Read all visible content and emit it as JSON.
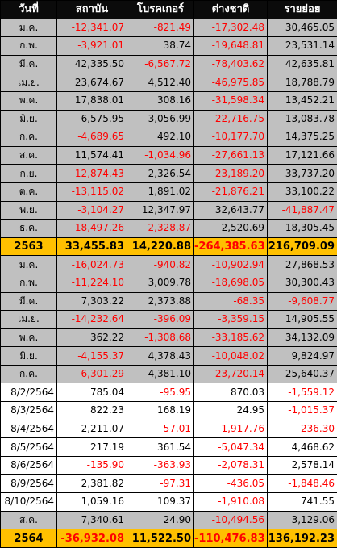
{
  "headers": [
    "วันที่",
    "สถาบัน",
    "โบรคเกอร์",
    "ต่างชาติ",
    "รายย่อย"
  ],
  "rows": [
    {
      "type": "month",
      "label": "ม.ค.",
      "values": [
        "-12,341.07",
        "-821.49",
        "-17,302.48",
        "30,465.05"
      ]
    },
    {
      "type": "month",
      "label": "ก.พ.",
      "values": [
        "-3,921.01",
        "38.74",
        "-19,648.81",
        "23,531.14"
      ]
    },
    {
      "type": "month",
      "label": "มี.ค.",
      "values": [
        "42,335.50",
        "-6,567.72",
        "-78,403.62",
        "42,635.81"
      ]
    },
    {
      "type": "month",
      "label": "เม.ย.",
      "values": [
        "23,674.67",
        "4,512.40",
        "-46,975.85",
        "18,788.79"
      ]
    },
    {
      "type": "month",
      "label": "พ.ค.",
      "values": [
        "17,838.01",
        "308.16",
        "-31,598.34",
        "13,452.21"
      ]
    },
    {
      "type": "month",
      "label": "มิ.ย.",
      "values": [
        "6,575.95",
        "3,056.99",
        "-22,716.75",
        "13,083.78"
      ]
    },
    {
      "type": "month",
      "label": "ก.ค.",
      "values": [
        "-4,689.65",
        "492.10",
        "-10,177.70",
        "14,375.25"
      ]
    },
    {
      "type": "month",
      "label": "ส.ค.",
      "values": [
        "11,574.41",
        "-1,034.96",
        "-27,661.13",
        "17,121.66"
      ]
    },
    {
      "type": "month",
      "label": "ก.ย.",
      "values": [
        "-12,874.43",
        "2,326.54",
        "-23,189.20",
        "33,737.20"
      ]
    },
    {
      "type": "month",
      "label": "ต.ค.",
      "values": [
        "-13,115.02",
        "1,891.02",
        "-21,876.21",
        "33,100.22"
      ]
    },
    {
      "type": "month",
      "label": "พ.ย.",
      "values": [
        "-3,104.27",
        "12,347.97",
        "32,643.77",
        "-41,887.47"
      ]
    },
    {
      "type": "month",
      "label": "ธ.ค.",
      "values": [
        "-18,497.26",
        "-2,328.87",
        "2,520.69",
        "18,305.45"
      ]
    },
    {
      "type": "summary",
      "label": "2563",
      "values": [
        "33,455.83",
        "14,220.88",
        "-264,385.63",
        "216,709.09"
      ]
    },
    {
      "type": "month",
      "label": "ม.ค.",
      "values": [
        "-16,024.73",
        "-940.82",
        "-10,902.94",
        "27,868.53"
      ]
    },
    {
      "type": "month",
      "label": "ก.พ.",
      "values": [
        "-11,224.10",
        "3,009.78",
        "-18,698.05",
        "30,300.43"
      ]
    },
    {
      "type": "month",
      "label": "มี.ค.",
      "values": [
        "7,303.22",
        "2,373.88",
        "-68.35",
        "-9,608.77"
      ]
    },
    {
      "type": "month",
      "label": "เม.ย.",
      "values": [
        "-14,232.64",
        "-396.09",
        "-3,359.15",
        "14,905.55"
      ]
    },
    {
      "type": "month",
      "label": "พ.ค.",
      "values": [
        "362.22",
        "-1,308.68",
        "-33,185.62",
        "34,132.09"
      ]
    },
    {
      "type": "month",
      "label": "มิ.ย.",
      "values": [
        "-4,155.37",
        "4,378.43",
        "-10,048.02",
        "9,824.97"
      ]
    },
    {
      "type": "month",
      "label": "ก.ค.",
      "values": [
        "-6,301.29",
        "4,381.10",
        "-23,720.14",
        "25,640.37"
      ]
    },
    {
      "type": "daily",
      "label": "8/2/2564",
      "values": [
        "785.04",
        "-95.95",
        "870.03",
        "-1,559.12"
      ]
    },
    {
      "type": "daily",
      "label": "8/3/2564",
      "values": [
        "822.23",
        "168.19",
        "24.95",
        "-1,015.37"
      ]
    },
    {
      "type": "daily",
      "label": "8/4/2564",
      "values": [
        "2,211.07",
        "-57.01",
        "-1,917.76",
        "-236.30"
      ]
    },
    {
      "type": "daily",
      "label": "8/5/2564",
      "values": [
        "217.19",
        "361.54",
        "-5,047.34",
        "4,468.62"
      ]
    },
    {
      "type": "daily",
      "label": "8/6/2564",
      "values": [
        "-135.90",
        "-363.93",
        "-2,078.31",
        "2,578.14"
      ]
    },
    {
      "type": "daily",
      "label": "8/9/2564",
      "values": [
        "2,381.82",
        "-97.31",
        "-436.05",
        "-1,848.46"
      ]
    },
    {
      "type": "daily",
      "label": "8/10/2564",
      "values": [
        "1,059.16",
        "109.37",
        "-1,910.08",
        "741.55"
      ]
    },
    {
      "type": "month",
      "label": "ส.ค.",
      "values": [
        "7,340.61",
        "24.90",
        "-10,494.56",
        "3,129.06"
      ]
    },
    {
      "type": "summary",
      "label": "2564",
      "values": [
        "-36,932.08",
        "11,522.50",
        "-110,476.83",
        "136,192.23"
      ]
    }
  ],
  "colors": {
    "header_bg": "#0b0b0b",
    "header_text": "#ffffff",
    "month_row_bg": "#c0c0c0",
    "daily_row_bg": "#ffffff",
    "summary_row_bg": "#ffc000",
    "negative_text": "#ff0000",
    "positive_text": "#000000"
  }
}
